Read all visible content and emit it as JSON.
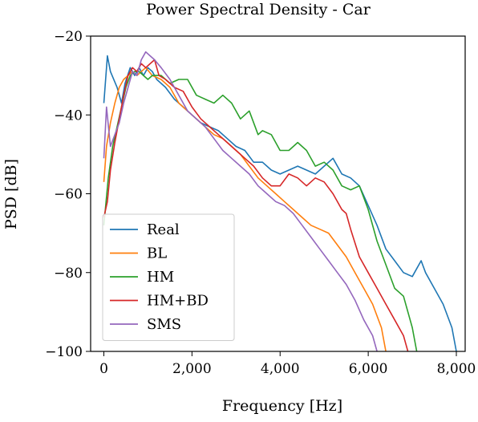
{
  "chart_data": {
    "type": "line",
    "title": "Power Spectral Density - Car",
    "xlabel": "Frequency [Hz]",
    "ylabel": "PSD [dB]",
    "xlim": [
      -300,
      8200
    ],
    "ylim": [
      -100,
      -20
    ],
    "xticks": [
      0,
      2000,
      4000,
      6000,
      8000
    ],
    "xtick_labels": [
      "0",
      "2,000",
      "4,000",
      "6,000",
      "8,000"
    ],
    "yticks": [
      -20,
      -40,
      -60,
      -80,
      -100
    ],
    "ytick_labels": [
      "−20",
      "−40",
      "−60",
      "−80",
      "−100"
    ],
    "grid": false,
    "legend_position": "lower-left",
    "series": [
      {
        "name": "Real",
        "color": "#1f77b4",
        "points": [
          [
            0,
            -37
          ],
          [
            80,
            -25
          ],
          [
            150,
            -29
          ],
          [
            300,
            -33
          ],
          [
            400,
            -37
          ],
          [
            480,
            -32
          ],
          [
            600,
            -28
          ],
          [
            700,
            -30
          ],
          [
            800,
            -28
          ],
          [
            900,
            -30
          ],
          [
            1000,
            -28
          ],
          [
            1100,
            -29
          ],
          [
            1200,
            -31
          ],
          [
            1400,
            -33
          ],
          [
            1600,
            -36
          ],
          [
            1800,
            -38
          ],
          [
            2000,
            -40
          ],
          [
            2200,
            -42
          ],
          [
            2400,
            -43
          ],
          [
            2600,
            -44
          ],
          [
            2800,
            -46
          ],
          [
            3000,
            -48
          ],
          [
            3200,
            -49
          ],
          [
            3400,
            -52
          ],
          [
            3600,
            -52
          ],
          [
            3800,
            -54
          ],
          [
            4000,
            -55
          ],
          [
            4200,
            -54
          ],
          [
            4400,
            -53
          ],
          [
            4600,
            -54
          ],
          [
            4800,
            -55
          ],
          [
            5000,
            -53
          ],
          [
            5200,
            -51
          ],
          [
            5400,
            -55
          ],
          [
            5600,
            -56
          ],
          [
            5800,
            -58
          ],
          [
            6000,
            -63
          ],
          [
            6200,
            -68
          ],
          [
            6400,
            -74
          ],
          [
            6600,
            -77
          ],
          [
            6800,
            -80
          ],
          [
            7000,
            -81
          ],
          [
            7100,
            -79
          ],
          [
            7200,
            -77
          ],
          [
            7300,
            -80
          ],
          [
            7500,
            -84
          ],
          [
            7700,
            -88
          ],
          [
            7900,
            -94
          ],
          [
            8000,
            -100
          ]
        ]
      },
      {
        "name": "BL",
        "color": "#ff7f0e",
        "points": [
          [
            0,
            -57
          ],
          [
            60,
            -48
          ],
          [
            150,
            -42
          ],
          [
            250,
            -37
          ],
          [
            350,
            -33
          ],
          [
            450,
            -31
          ],
          [
            550,
            -30
          ],
          [
            650,
            -29
          ],
          [
            750,
            -30
          ],
          [
            850,
            -29
          ],
          [
            950,
            -28
          ],
          [
            1100,
            -30
          ],
          [
            1300,
            -31
          ],
          [
            1500,
            -33
          ],
          [
            1700,
            -37
          ],
          [
            1900,
            -39
          ],
          [
            2100,
            -41
          ],
          [
            2300,
            -43
          ],
          [
            2500,
            -45
          ],
          [
            2700,
            -46
          ],
          [
            2900,
            -48
          ],
          [
            3100,
            -50
          ],
          [
            3300,
            -53
          ],
          [
            3500,
            -56
          ],
          [
            3700,
            -58
          ],
          [
            3900,
            -60
          ],
          [
            4100,
            -62
          ],
          [
            4300,
            -64
          ],
          [
            4500,
            -66
          ],
          [
            4700,
            -68
          ],
          [
            4900,
            -69
          ],
          [
            5100,
            -70
          ],
          [
            5300,
            -73
          ],
          [
            5500,
            -76
          ],
          [
            5700,
            -80
          ],
          [
            5900,
            -84
          ],
          [
            6100,
            -88
          ],
          [
            6300,
            -94
          ],
          [
            6400,
            -100
          ]
        ]
      },
      {
        "name": "HM",
        "color": "#2ca02c",
        "points": [
          [
            0,
            -68
          ],
          [
            100,
            -56
          ],
          [
            200,
            -48
          ],
          [
            300,
            -43
          ],
          [
            400,
            -38
          ],
          [
            500,
            -33
          ],
          [
            600,
            -30
          ],
          [
            700,
            -29
          ],
          [
            800,
            -29
          ],
          [
            900,
            -30
          ],
          [
            1000,
            -31
          ],
          [
            1100,
            -30
          ],
          [
            1300,
            -30
          ],
          [
            1500,
            -32
          ],
          [
            1700,
            -31
          ],
          [
            1900,
            -31
          ],
          [
            2100,
            -35
          ],
          [
            2300,
            -36
          ],
          [
            2500,
            -37
          ],
          [
            2700,
            -35
          ],
          [
            2900,
            -37
          ],
          [
            3100,
            -41
          ],
          [
            3300,
            -39
          ],
          [
            3500,
            -45
          ],
          [
            3600,
            -44
          ],
          [
            3800,
            -45
          ],
          [
            4000,
            -49
          ],
          [
            4200,
            -49
          ],
          [
            4400,
            -47
          ],
          [
            4600,
            -49
          ],
          [
            4800,
            -53
          ],
          [
            5000,
            -52
          ],
          [
            5200,
            -54
          ],
          [
            5400,
            -58
          ],
          [
            5600,
            -59
          ],
          [
            5800,
            -58
          ],
          [
            6000,
            -64
          ],
          [
            6200,
            -72
          ],
          [
            6400,
            -78
          ],
          [
            6600,
            -84
          ],
          [
            6800,
            -86
          ],
          [
            7000,
            -94
          ],
          [
            7100,
            -100
          ]
        ]
      },
      {
        "name": "HM+BD",
        "color": "#d62728",
        "points": [
          [
            0,
            -66
          ],
          [
            80,
            -62
          ],
          [
            150,
            -54
          ],
          [
            250,
            -47
          ],
          [
            350,
            -41
          ],
          [
            450,
            -35
          ],
          [
            550,
            -30
          ],
          [
            650,
            -28
          ],
          [
            750,
            -29
          ],
          [
            850,
            -27
          ],
          [
            950,
            -28
          ],
          [
            1050,
            -27
          ],
          [
            1150,
            -26
          ],
          [
            1250,
            -30
          ],
          [
            1400,
            -31
          ],
          [
            1600,
            -33
          ],
          [
            1800,
            -34
          ],
          [
            2000,
            -38
          ],
          [
            2200,
            -41
          ],
          [
            2400,
            -43
          ],
          [
            2600,
            -45
          ],
          [
            2800,
            -47
          ],
          [
            3000,
            -49
          ],
          [
            3200,
            -51
          ],
          [
            3400,
            -53
          ],
          [
            3600,
            -56
          ],
          [
            3800,
            -58
          ],
          [
            4000,
            -58
          ],
          [
            4200,
            -55
          ],
          [
            4400,
            -56
          ],
          [
            4600,
            -58
          ],
          [
            4800,
            -56
          ],
          [
            5000,
            -57
          ],
          [
            5200,
            -60
          ],
          [
            5400,
            -64
          ],
          [
            5500,
            -65
          ],
          [
            5600,
            -69
          ],
          [
            5800,
            -76
          ],
          [
            6000,
            -80
          ],
          [
            6200,
            -84
          ],
          [
            6400,
            -88
          ],
          [
            6600,
            -92
          ],
          [
            6800,
            -96
          ],
          [
            6900,
            -100
          ]
        ]
      },
      {
        "name": "SMS",
        "color": "#9467bd",
        "points": [
          [
            0,
            -51
          ],
          [
            60,
            -38
          ],
          [
            150,
            -48
          ],
          [
            250,
            -45
          ],
          [
            350,
            -42
          ],
          [
            450,
            -37
          ],
          [
            550,
            -33
          ],
          [
            650,
            -29
          ],
          [
            750,
            -30
          ],
          [
            850,
            -26
          ],
          [
            950,
            -24
          ],
          [
            1050,
            -25
          ],
          [
            1150,
            -26
          ],
          [
            1300,
            -28
          ],
          [
            1500,
            -31
          ],
          [
            1700,
            -35
          ],
          [
            1900,
            -39
          ],
          [
            2100,
            -41
          ],
          [
            2300,
            -43
          ],
          [
            2500,
            -46
          ],
          [
            2700,
            -49
          ],
          [
            2900,
            -51
          ],
          [
            3100,
            -53
          ],
          [
            3300,
            -55
          ],
          [
            3500,
            -58
          ],
          [
            3700,
            -60
          ],
          [
            3900,
            -62
          ],
          [
            4100,
            -63
          ],
          [
            4300,
            -65
          ],
          [
            4500,
            -68
          ],
          [
            4700,
            -71
          ],
          [
            4900,
            -74
          ],
          [
            5100,
            -77
          ],
          [
            5300,
            -80
          ],
          [
            5500,
            -83
          ],
          [
            5700,
            -87
          ],
          [
            5900,
            -92
          ],
          [
            6100,
            -96
          ],
          [
            6200,
            -100
          ]
        ]
      }
    ]
  }
}
